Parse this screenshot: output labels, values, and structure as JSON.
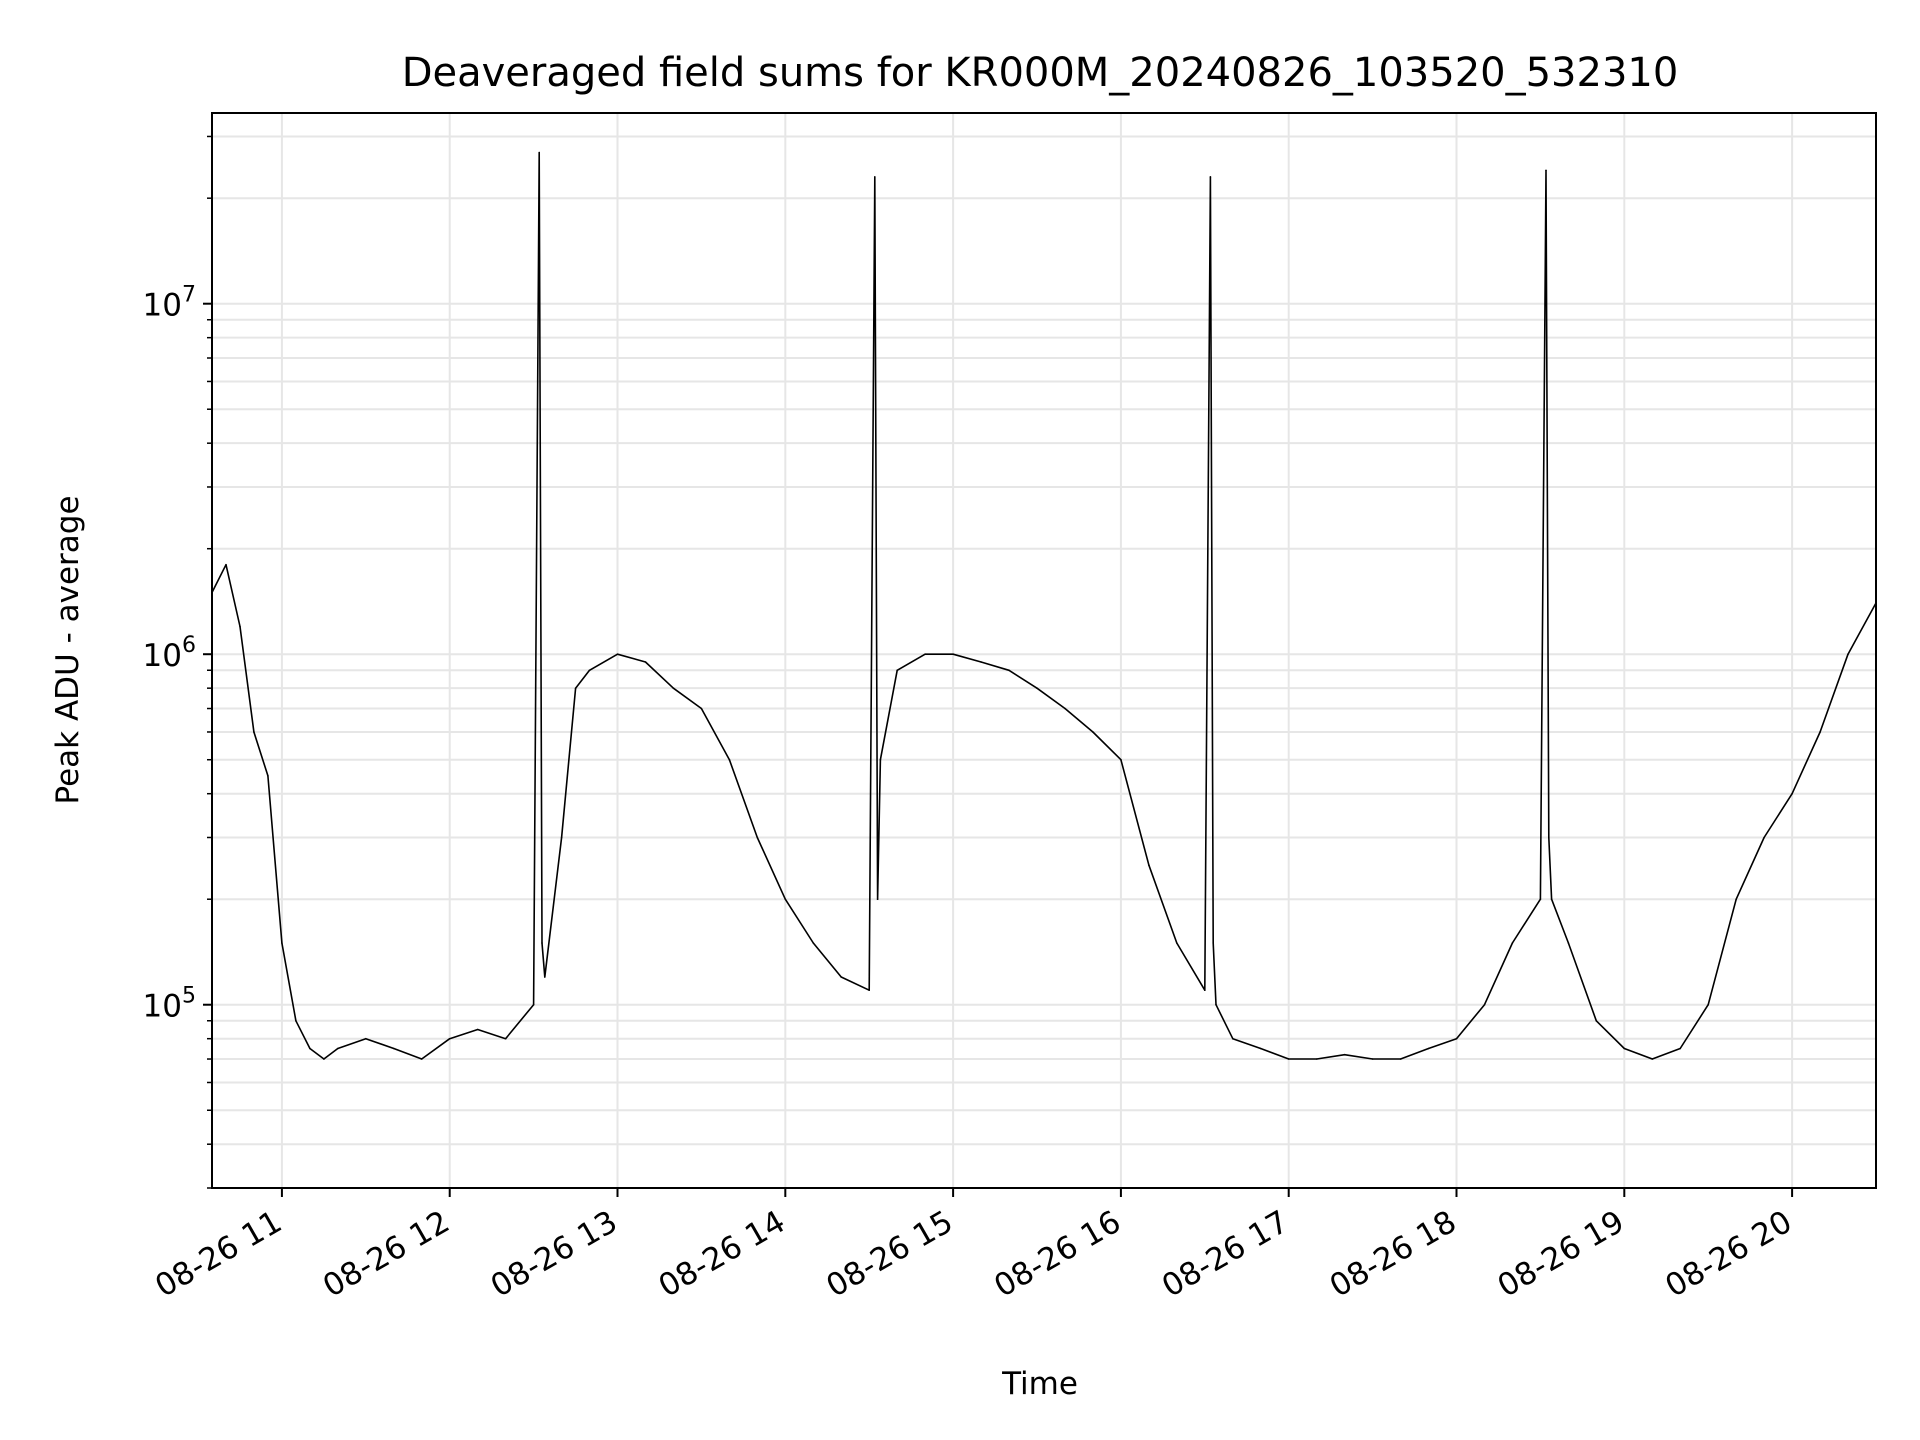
{
  "chart_data": {
    "type": "line",
    "title": "Deaveraged field sums for KR000M_20240826_103520_532310",
    "xlabel": "Time",
    "ylabel": "Peak ADU - average",
    "yscale": "log",
    "ylim": [
      30000,
      35000000
    ],
    "xlim": [
      "2024-08-26 10:35",
      "2024-08-26 20:30"
    ],
    "grid": true,
    "line_color": "#000000",
    "grid_color": "#e6e6e6",
    "x_ticks": [
      "08-26 11",
      "08-26 12",
      "08-26 13",
      "08-26 14",
      "08-26 15",
      "08-26 16",
      "08-26 17",
      "08-26 18",
      "08-26 19",
      "08-26 20"
    ],
    "y_ticks": [
      {
        "exp": "5",
        "value": 100000
      },
      {
        "exp": "6",
        "value": 1000000
      },
      {
        "exp": "7",
        "value": 10000000
      }
    ],
    "series": [
      {
        "x": [
          "2024-08-26 10:35",
          "2024-08-26 10:40",
          "2024-08-26 10:45",
          "2024-08-26 10:50",
          "2024-08-26 10:55",
          "2024-08-26 11:00",
          "2024-08-26 11:05",
          "2024-08-26 11:10",
          "2024-08-26 11:15",
          "2024-08-26 11:20",
          "2024-08-26 11:30",
          "2024-08-26 11:40",
          "2024-08-26 11:50",
          "2024-08-26 12:00",
          "2024-08-26 12:10",
          "2024-08-26 12:20",
          "2024-08-26 12:30",
          "2024-08-26 12:32",
          "2024-08-26 12:33",
          "2024-08-26 12:34",
          "2024-08-26 12:40",
          "2024-08-26 12:45",
          "2024-08-26 12:50",
          "2024-08-26 13:00",
          "2024-08-26 13:10",
          "2024-08-26 13:20",
          "2024-08-26 13:30",
          "2024-08-26 13:40",
          "2024-08-26 13:50",
          "2024-08-26 14:00",
          "2024-08-26 14:10",
          "2024-08-26 14:20",
          "2024-08-26 14:30",
          "2024-08-26 14:32",
          "2024-08-26 14:33",
          "2024-08-26 14:34",
          "2024-08-26 14:40",
          "2024-08-26 14:50",
          "2024-08-26 15:00",
          "2024-08-26 15:10",
          "2024-08-26 15:20",
          "2024-08-26 15:30",
          "2024-08-26 15:40",
          "2024-08-26 15:50",
          "2024-08-26 16:00",
          "2024-08-26 16:10",
          "2024-08-26 16:20",
          "2024-08-26 16:30",
          "2024-08-26 16:32",
          "2024-08-26 16:33",
          "2024-08-26 16:34",
          "2024-08-26 16:40",
          "2024-08-26 16:50",
          "2024-08-26 17:00",
          "2024-08-26 17:10",
          "2024-08-26 17:20",
          "2024-08-26 17:30",
          "2024-08-26 17:40",
          "2024-08-26 17:50",
          "2024-08-26 18:00",
          "2024-08-26 18:10",
          "2024-08-26 18:20",
          "2024-08-26 18:30",
          "2024-08-26 18:32",
          "2024-08-26 18:33",
          "2024-08-26 18:34",
          "2024-08-26 18:40",
          "2024-08-26 18:50",
          "2024-08-26 19:00",
          "2024-08-26 19:10",
          "2024-08-26 19:20",
          "2024-08-26 19:30",
          "2024-08-26 19:40",
          "2024-08-26 19:50",
          "2024-08-26 20:00",
          "2024-08-26 20:10",
          "2024-08-26 20:20",
          "2024-08-26 20:30"
        ],
        "y": [
          1500000,
          1800000,
          1200000,
          600000,
          450000,
          150000,
          90000,
          75000,
          70000,
          75000,
          80000,
          75000,
          70000,
          80000,
          85000,
          80000,
          100000,
          27000000,
          150000,
          120000,
          300000,
          800000,
          900000,
          1000000,
          950000,
          800000,
          700000,
          500000,
          300000,
          200000,
          150000,
          120000,
          110000,
          23000000,
          200000,
          500000,
          900000,
          1000000,
          1000000,
          950000,
          900000,
          800000,
          700000,
          600000,
          500000,
          250000,
          150000,
          110000,
          23000000,
          150000,
          100000,
          80000,
          75000,
          70000,
          70000,
          72000,
          70000,
          70000,
          75000,
          80000,
          100000,
          150000,
          200000,
          24000000,
          300000,
          200000,
          150000,
          90000,
          75000,
          70000,
          75000,
          100000,
          200000,
          300000,
          400000,
          600000,
          1000000,
          1400000
        ]
      }
    ]
  }
}
